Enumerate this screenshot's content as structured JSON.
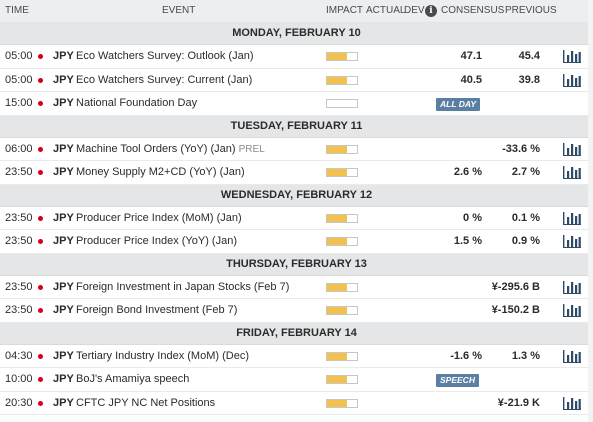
{
  "header": {
    "time": "TIME",
    "event": "EVENT",
    "impact": "IMPACT",
    "actual": "ACTUAL",
    "dev": "DEV",
    "info": "i",
    "consensus": "CONSENSUS",
    "previous": "PREVIOUS"
  },
  "colors": {
    "flag": "#d4001a",
    "impact_fill": "#f2c14e",
    "badge": "#5b7fa3",
    "chart_icon": "#2f4a66"
  },
  "days": [
    {
      "label": "MONDAY, FEBRUARY 10",
      "events": [
        {
          "time": "05:00",
          "currency": "JPY",
          "event": "Eco Watchers Survey: Outlook (Jan)",
          "tag": "",
          "impact": 0.66,
          "badge": "",
          "consensus": "47.1",
          "previous": "45.4",
          "chart": true
        },
        {
          "time": "05:00",
          "currency": "JPY",
          "event": "Eco Watchers Survey: Current (Jan)",
          "tag": "",
          "impact": 0.66,
          "badge": "",
          "consensus": "40.5",
          "previous": "39.8",
          "chart": true
        },
        {
          "time": "15:00",
          "currency": "JPY",
          "event": "National Foundation Day",
          "tag": "",
          "impact": 0,
          "badge": "ALL DAY",
          "consensus": "",
          "previous": "",
          "chart": false
        }
      ]
    },
    {
      "label": "TUESDAY, FEBRUARY 11",
      "events": [
        {
          "time": "06:00",
          "currency": "JPY",
          "event": "Machine Tool Orders (YoY) (Jan)",
          "tag": "PREL",
          "impact": 0.66,
          "badge": "",
          "consensus": "",
          "previous": "-33.6 %",
          "chart": true
        },
        {
          "time": "23:50",
          "currency": "JPY",
          "event": "Money Supply M2+CD (YoY) (Jan)",
          "tag": "",
          "impact": 0.66,
          "badge": "",
          "consensus": "2.6 %",
          "previous": "2.7 %",
          "chart": true
        }
      ]
    },
    {
      "label": "WEDNESDAY, FEBRUARY 12",
      "events": [
        {
          "time": "23:50",
          "currency": "JPY",
          "event": "Producer Price Index (MoM) (Jan)",
          "tag": "",
          "impact": 0.66,
          "badge": "",
          "consensus": "0 %",
          "previous": "0.1 %",
          "chart": true
        },
        {
          "time": "23:50",
          "currency": "JPY",
          "event": "Producer Price Index (YoY) (Jan)",
          "tag": "",
          "impact": 0.66,
          "badge": "",
          "consensus": "1.5 %",
          "previous": "0.9 %",
          "chart": true
        }
      ]
    },
    {
      "label": "THURSDAY, FEBRUARY 13",
      "events": [
        {
          "time": "23:50",
          "currency": "JPY",
          "event": "Foreign Investment in Japan Stocks (Feb 7)",
          "tag": "",
          "impact": 0.66,
          "badge": "",
          "consensus": "",
          "previous": "¥-295.6 B",
          "chart": true
        },
        {
          "time": "23:50",
          "currency": "JPY",
          "event": "Foreign Bond Investment (Feb 7)",
          "tag": "",
          "impact": 0.66,
          "badge": "",
          "consensus": "",
          "previous": "¥-150.2 B",
          "chart": true
        }
      ]
    },
    {
      "label": "FRIDAY, FEBRUARY 14",
      "events": [
        {
          "time": "04:30",
          "currency": "JPY",
          "event": "Tertiary Industry Index (MoM) (Dec)",
          "tag": "",
          "impact": 0.66,
          "badge": "",
          "consensus": "-1.6 %",
          "previous": "1.3 %",
          "chart": true
        },
        {
          "time": "10:00",
          "currency": "JPY",
          "event": "BoJ's Amamiya speech",
          "tag": "",
          "impact": 0.66,
          "badge": "SPEECH",
          "consensus": "",
          "previous": "",
          "chart": false
        },
        {
          "time": "20:30",
          "currency": "JPY",
          "event": "CFTC JPY NC Net Positions",
          "tag": "",
          "impact": 0.66,
          "badge": "",
          "consensus": "",
          "previous": "¥-21.9 K",
          "chart": true
        }
      ]
    }
  ]
}
